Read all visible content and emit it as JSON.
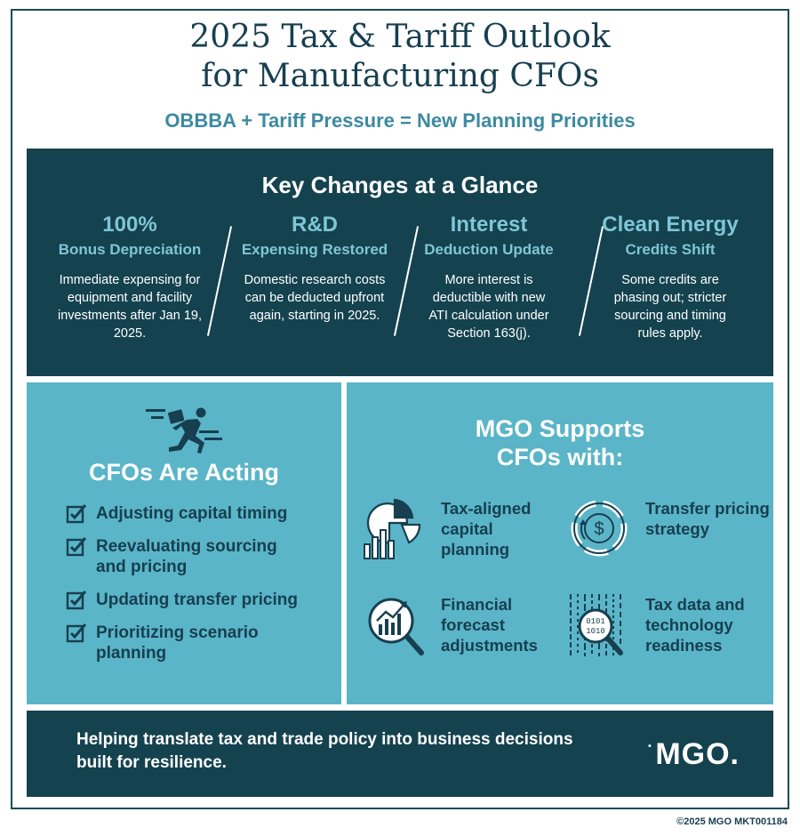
{
  "header": {
    "title_line1": "2025 Tax & Tariff Outlook",
    "title_line2": "for Manufacturing CFOs",
    "subtitle": "OBBBA + Tariff Pressure = New Planning Priorities"
  },
  "key_changes": {
    "title": "Key Changes at a Glance",
    "items": [
      {
        "head": "100%",
        "sub": "Bonus Depreciation",
        "desc": "Immediate expensing for equipment and facility investments after Jan 19, 2025."
      },
      {
        "head": "R&D",
        "sub": "Expensing Restored",
        "desc": "Domestic research costs can be deducted upfront again, starting in 2025."
      },
      {
        "head": "Interest",
        "sub": "Deduction Update",
        "desc": "More interest is deductible with new ATI calculation under Section 163(j)."
      },
      {
        "head": "Clean Energy",
        "sub": "Credits Shift",
        "desc": "Some credits are phasing out; stricter sourcing and timing rules apply."
      }
    ]
  },
  "cfos_acting": {
    "icon": "running-person-icon",
    "title": "CFOs Are Acting",
    "items": [
      "Adjusting capital timing",
      "Reevaluating sourcing and pricing",
      "Updating transfer pricing",
      "Prioritizing scenario planning"
    ]
  },
  "mgo_supports": {
    "title_line1": "MGO Supports",
    "title_line2": "CFOs with:",
    "services": [
      {
        "icon": "chart-pie-icon",
        "label": "Tax-aligned capital planning"
      },
      {
        "icon": "dollar-cycle-icon",
        "label": "Transfer pricing strategy"
      },
      {
        "icon": "magnifier-chart-icon",
        "label": "Financial forecast adjustments"
      },
      {
        "icon": "binary-data-icon",
        "label": "Tax data and technology readiness"
      }
    ]
  },
  "bottom": {
    "tagline": "Helping translate tax and trade policy into business decisions built for resilience.",
    "logo": "MGO."
  },
  "footer": "©2025 MGO MKT001184",
  "colors": {
    "dark_teal": "#14424f",
    "teal": "#5ab5c8",
    "light_accent": "#7fc6d6",
    "text_dark": "#173f4f"
  }
}
